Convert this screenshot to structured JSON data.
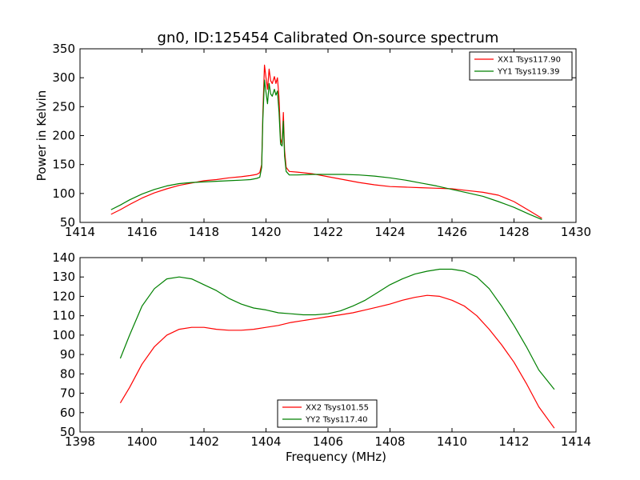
{
  "figure_title": "gn0, ID:125454 Calibrated On-source spectrum",
  "chart_data": [
    {
      "type": "line",
      "title": "gn0, ID:125454 Calibrated On-source spectrum",
      "xlabel": "",
      "ylabel": "Power in Kelvin",
      "xlim": [
        1414,
        1430
      ],
      "ylim": [
        50,
        350
      ],
      "xticks": [
        1414,
        1416,
        1418,
        1420,
        1422,
        1424,
        1426,
        1428,
        1430
      ],
      "yticks": [
        50,
        100,
        150,
        200,
        250,
        300,
        350
      ],
      "legend_position": "top-right",
      "grid": false,
      "series": [
        {
          "name": "XX1 Tsys117.90",
          "color": "#ff0000",
          "points": [
            [
              1415.0,
              64
            ],
            [
              1415.3,
              72
            ],
            [
              1415.6,
              81
            ],
            [
              1416.0,
              92
            ],
            [
              1416.4,
              101
            ],
            [
              1416.8,
              108
            ],
            [
              1417.2,
              114
            ],
            [
              1417.6,
              118
            ],
            [
              1418.0,
              122
            ],
            [
              1418.4,
              124
            ],
            [
              1418.8,
              127
            ],
            [
              1419.2,
              129
            ],
            [
              1419.5,
              131
            ],
            [
              1419.7,
              133
            ],
            [
              1419.8,
              136
            ],
            [
              1419.86,
              150
            ],
            [
              1419.9,
              240
            ],
            [
              1419.95,
              322
            ],
            [
              1420.0,
              300
            ],
            [
              1420.05,
              280
            ],
            [
              1420.1,
              315
            ],
            [
              1420.15,
              295
            ],
            [
              1420.2,
              290
            ],
            [
              1420.27,
              302
            ],
            [
              1420.32,
              290
            ],
            [
              1420.37,
              300
            ],
            [
              1420.42,
              265
            ],
            [
              1420.47,
              195
            ],
            [
              1420.52,
              185
            ],
            [
              1420.56,
              240
            ],
            [
              1420.6,
              175
            ],
            [
              1420.65,
              145
            ],
            [
              1420.75,
              138
            ],
            [
              1421.0,
              137
            ],
            [
              1421.5,
              134
            ],
            [
              1422.0,
              129
            ],
            [
              1422.5,
              124
            ],
            [
              1423.0,
              119
            ],
            [
              1423.5,
              115
            ],
            [
              1424.0,
              112
            ],
            [
              1424.5,
              111
            ],
            [
              1425.0,
              110
            ],
            [
              1425.5,
              109
            ],
            [
              1426.0,
              108
            ],
            [
              1426.5,
              105
            ],
            [
              1427.0,
              102
            ],
            [
              1427.5,
              97
            ],
            [
              1428.0,
              86
            ],
            [
              1428.5,
              70
            ],
            [
              1428.9,
              57
            ]
          ]
        },
        {
          "name": "YY1 Tsys119.39",
          "color": "#008000",
          "points": [
            [
              1415.0,
              72
            ],
            [
              1415.3,
              80
            ],
            [
              1415.6,
              89
            ],
            [
              1416.0,
              99
            ],
            [
              1416.4,
              107
            ],
            [
              1416.8,
              113
            ],
            [
              1417.2,
              117
            ],
            [
              1417.6,
              119
            ],
            [
              1418.0,
              120
            ],
            [
              1418.4,
              121
            ],
            [
              1418.8,
              122
            ],
            [
              1419.2,
              123
            ],
            [
              1419.5,
              124
            ],
            [
              1419.7,
              126
            ],
            [
              1419.8,
              128
            ],
            [
              1419.86,
              145
            ],
            [
              1419.9,
              230
            ],
            [
              1419.95,
              296
            ],
            [
              1420.0,
              275
            ],
            [
              1420.05,
              255
            ],
            [
              1420.1,
              290
            ],
            [
              1420.15,
              272
            ],
            [
              1420.2,
              268
            ],
            [
              1420.27,
              280
            ],
            [
              1420.32,
              270
            ],
            [
              1420.37,
              277
            ],
            [
              1420.42,
              240
            ],
            [
              1420.47,
              185
            ],
            [
              1420.52,
              182
            ],
            [
              1420.56,
              225
            ],
            [
              1420.6,
              165
            ],
            [
              1420.65,
              138
            ],
            [
              1420.75,
              132
            ],
            [
              1421.0,
              132
            ],
            [
              1421.5,
              133
            ],
            [
              1422.0,
              133
            ],
            [
              1422.5,
              133
            ],
            [
              1423.0,
              132
            ],
            [
              1423.5,
              130
            ],
            [
              1424.0,
              127
            ],
            [
              1424.5,
              123
            ],
            [
              1425.0,
              118
            ],
            [
              1425.5,
              113
            ],
            [
              1426.0,
              107
            ],
            [
              1426.5,
              101
            ],
            [
              1427.0,
              95
            ],
            [
              1427.5,
              86
            ],
            [
              1428.0,
              76
            ],
            [
              1428.5,
              64
            ],
            [
              1428.9,
              55
            ]
          ]
        }
      ]
    },
    {
      "type": "line",
      "title": "",
      "xlabel": "Frequency (MHz)",
      "ylabel": "",
      "xlim": [
        1398,
        1414
      ],
      "ylim": [
        50,
        140
      ],
      "xticks": [
        1398,
        1400,
        1402,
        1404,
        1406,
        1408,
        1410,
        1412,
        1414
      ],
      "yticks": [
        50,
        60,
        70,
        80,
        90,
        100,
        110,
        120,
        130,
        140
      ],
      "legend_position": "bottom-center",
      "grid": false,
      "series": [
        {
          "name": "XX2 Tsys101.55",
          "color": "#ff0000",
          "points": [
            [
              1399.3,
              65
            ],
            [
              1399.6,
              73
            ],
            [
              1400.0,
              85
            ],
            [
              1400.4,
              94
            ],
            [
              1400.8,
              100
            ],
            [
              1401.2,
              103
            ],
            [
              1401.6,
              104
            ],
            [
              1402.0,
              104
            ],
            [
              1402.4,
              103
            ],
            [
              1402.8,
              102.5
            ],
            [
              1403.2,
              102.5
            ],
            [
              1403.6,
              103
            ],
            [
              1404.0,
              104
            ],
            [
              1404.4,
              105
            ],
            [
              1404.8,
              106.5
            ],
            [
              1405.2,
              107.5
            ],
            [
              1405.6,
              108.5
            ],
            [
              1406.0,
              109.5
            ],
            [
              1406.4,
              110.5
            ],
            [
              1406.8,
              111.5
            ],
            [
              1407.2,
              113
            ],
            [
              1407.6,
              114.5
            ],
            [
              1408.0,
              116
            ],
            [
              1408.4,
              118
            ],
            [
              1408.8,
              119.5
            ],
            [
              1409.2,
              120.5
            ],
            [
              1409.6,
              120
            ],
            [
              1410.0,
              118
            ],
            [
              1410.4,
              115
            ],
            [
              1410.8,
              110
            ],
            [
              1411.2,
              103
            ],
            [
              1411.6,
              95
            ],
            [
              1412.0,
              86
            ],
            [
              1412.4,
              75
            ],
            [
              1412.8,
              63
            ],
            [
              1413.3,
              52
            ]
          ]
        },
        {
          "name": "YY2 Tsys117.40",
          "color": "#008000",
          "points": [
            [
              1399.3,
              88
            ],
            [
              1399.6,
              100
            ],
            [
              1400.0,
              115
            ],
            [
              1400.4,
              124
            ],
            [
              1400.8,
              129
            ],
            [
              1401.2,
              130
            ],
            [
              1401.6,
              129
            ],
            [
              1402.0,
              126
            ],
            [
              1402.4,
              123
            ],
            [
              1402.8,
              119
            ],
            [
              1403.2,
              116
            ],
            [
              1403.6,
              114
            ],
            [
              1404.0,
              113
            ],
            [
              1404.4,
              111.5
            ],
            [
              1404.8,
              111
            ],
            [
              1405.2,
              110.5
            ],
            [
              1405.6,
              110.5
            ],
            [
              1406.0,
              111
            ],
            [
              1406.4,
              112.5
            ],
            [
              1406.8,
              115
            ],
            [
              1407.2,
              118
            ],
            [
              1407.6,
              122
            ],
            [
              1408.0,
              126
            ],
            [
              1408.4,
              129
            ],
            [
              1408.8,
              131.5
            ],
            [
              1409.2,
              133
            ],
            [
              1409.6,
              134
            ],
            [
              1410.0,
              134
            ],
            [
              1410.4,
              133
            ],
            [
              1410.8,
              130
            ],
            [
              1411.2,
              124
            ],
            [
              1411.6,
              115
            ],
            [
              1412.0,
              105
            ],
            [
              1412.4,
              94
            ],
            [
              1412.8,
              82
            ],
            [
              1413.3,
              72
            ]
          ]
        }
      ]
    }
  ]
}
